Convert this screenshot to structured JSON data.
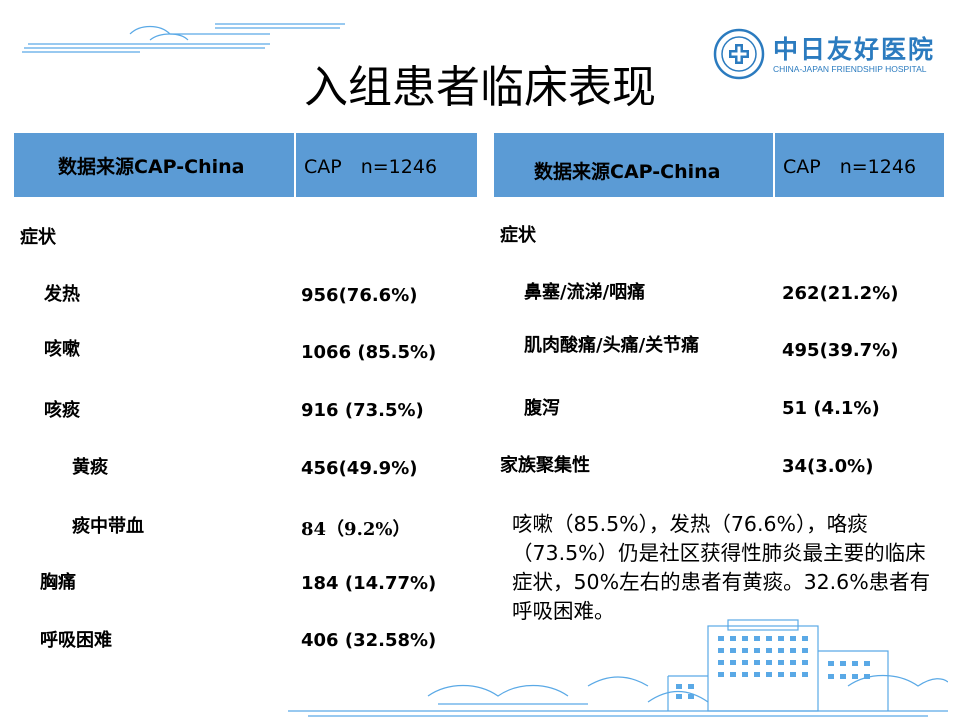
{
  "title": "入组患者临床表现",
  "logo": {
    "name_cn": "中日友好医院",
    "name_en": "CHINA-JAPAN FRIENDSHIP HOSPITAL",
    "brand_color": "#2b7bbf"
  },
  "colors": {
    "table_header": "#5b9bd5",
    "decor": "#5aa9e6"
  },
  "left_table": {
    "header": {
      "source": "数据来源CAP-China",
      "cohort": "CAP　n=1246"
    },
    "section": "症状",
    "rows": [
      {
        "label": "发热",
        "value": "956(76.6%)"
      },
      {
        "label": "咳嗽",
        "value": "1066 (85.5%)"
      },
      {
        "label": "咳痰",
        "value": "916 (73.5%)"
      },
      {
        "label": "黄痰",
        "value": "456(49.9%)"
      },
      {
        "label": "痰中带血",
        "value": "84（9.2%）"
      },
      {
        "label": "胸痛",
        "value": "184 (14.77%)"
      },
      {
        "label": "呼吸困难",
        "value": "406 (32.58%)"
      }
    ]
  },
  "right_table": {
    "header": {
      "source": "数据来源CAP-China",
      "cohort": "CAP　n=1246"
    },
    "section": "症状",
    "rows": [
      {
        "label": "鼻塞/流涕/咽痛",
        "value": "262(21.2%)"
      },
      {
        "label": "肌肉酸痛/头痛/关节痛",
        "value": "495(39.7%)"
      },
      {
        "label": "腹泻",
        "value": "51 (4.1%)"
      },
      {
        "label": "家族聚集性",
        "value": "34(3.0%)"
      }
    ]
  },
  "summary": "咳嗽（85.5%），发热（76.6%），咯痰（73.5%）仍是社区获得性肺炎最主要的临床症状，50%左右的患者有黄痰。32.6%患者有呼吸困难。"
}
